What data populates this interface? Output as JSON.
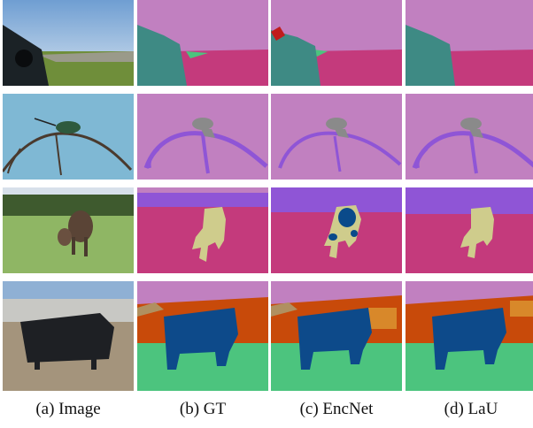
{
  "figure": {
    "columns": [
      {
        "caption": "(a) Image"
      },
      {
        "caption": "(b) GT"
      },
      {
        "caption": "(c) EncNet"
      },
      {
        "caption": "(d) LaU"
      }
    ],
    "rows": [
      {
        "content": "car on road beside grass field under sky"
      },
      {
        "content": "hummingbird perched on branch against blue sky"
      },
      {
        "content": "cow and calf grazing on grass near trees"
      },
      {
        "content": "black bull standing on dirt ground near fence"
      }
    ],
    "segmentation_palette": {
      "sky": "#c180c0",
      "road": "#c43a7c",
      "car": "#3e8a84",
      "grass": "#4cc47e",
      "bird": "#8a8a8a",
      "tree": "#8f55d6",
      "cow": "#cfcc8c",
      "cow_error": "#0a4a8a",
      "bull": "#0d4a8a",
      "building": "#c84a0a",
      "mountain": "#b09060"
    }
  }
}
